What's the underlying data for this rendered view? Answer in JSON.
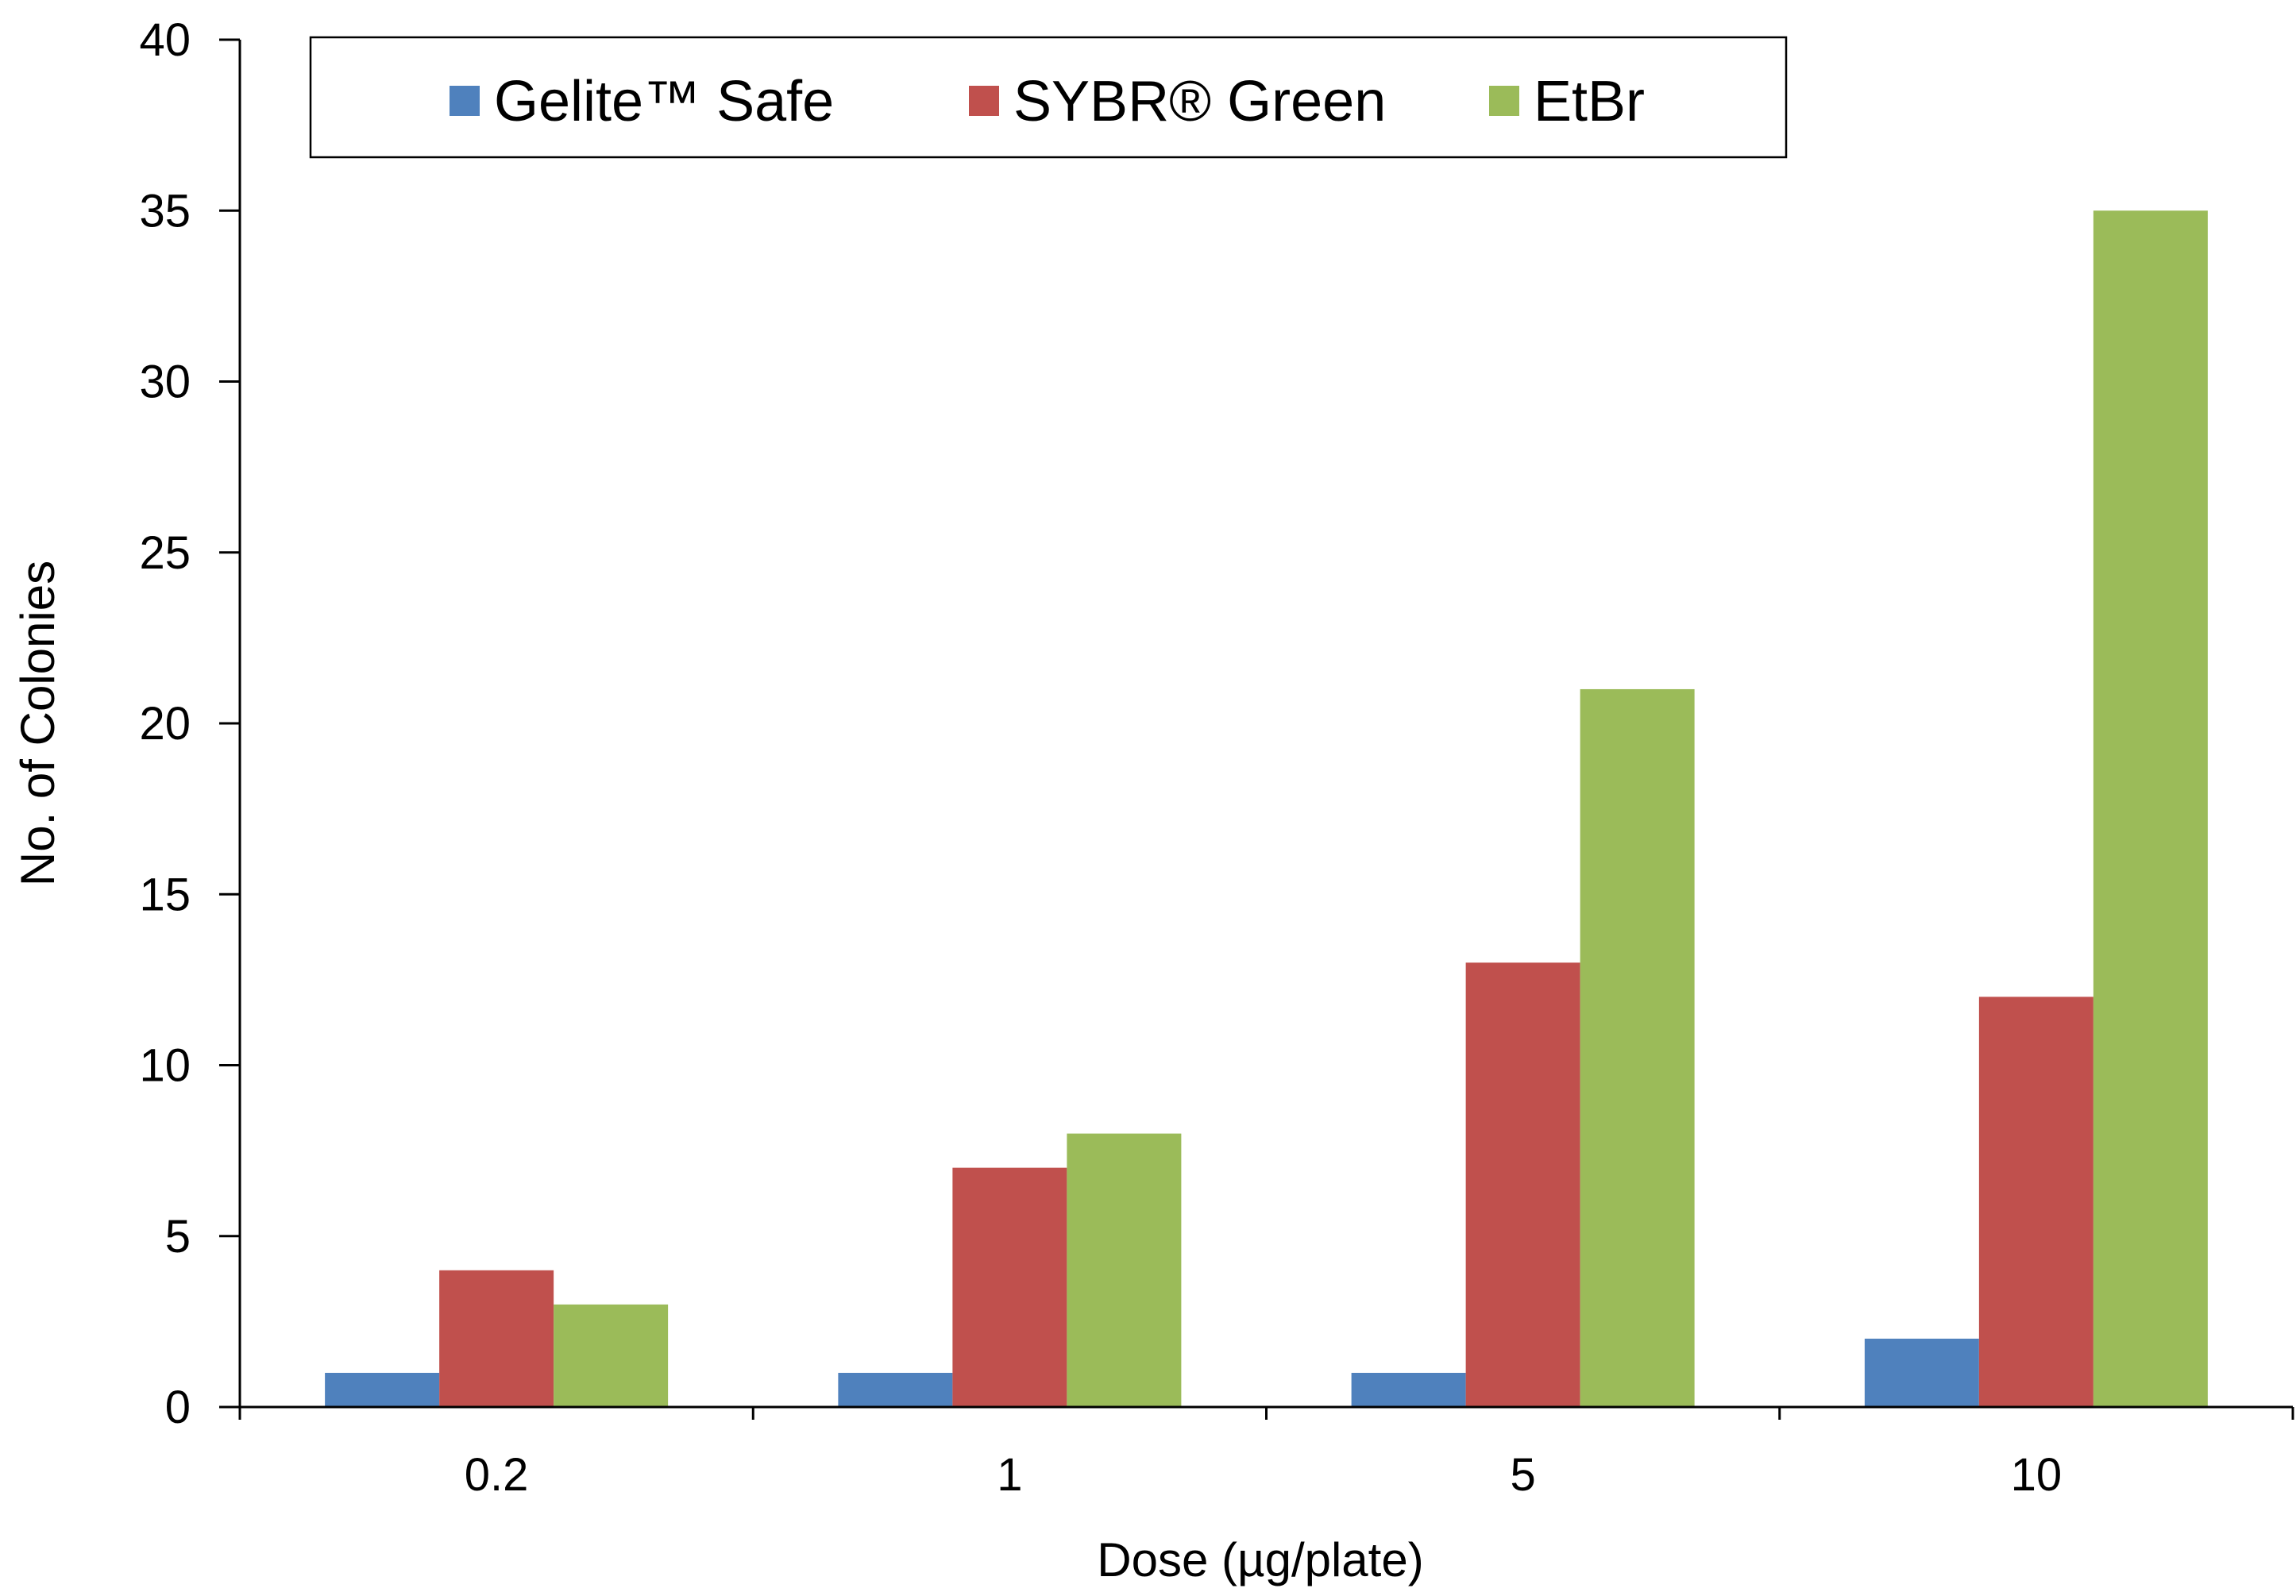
{
  "chart_data": {
    "type": "bar",
    "title": "",
    "xlabel": "Dose (µg/plate)",
    "ylabel": "No. of Colonies",
    "categories": [
      "0.2",
      "1",
      "5",
      "10"
    ],
    "ylim": [
      0,
      40
    ],
    "yticks": [
      0,
      5,
      10,
      15,
      20,
      25,
      30,
      35,
      40
    ],
    "grid": false,
    "legend_position": "top",
    "series": [
      {
        "name": "Gelite™ Safe",
        "color": "#4f81bd",
        "values": [
          1,
          1,
          1,
          2
        ]
      },
      {
        "name": "SYBR® Green",
        "color": "#c0504d",
        "values": [
          4,
          7,
          13,
          12
        ]
      },
      {
        "name": "EtBr",
        "color": "#9bbb59",
        "values": [
          3,
          8,
          21,
          35
        ]
      }
    ]
  }
}
